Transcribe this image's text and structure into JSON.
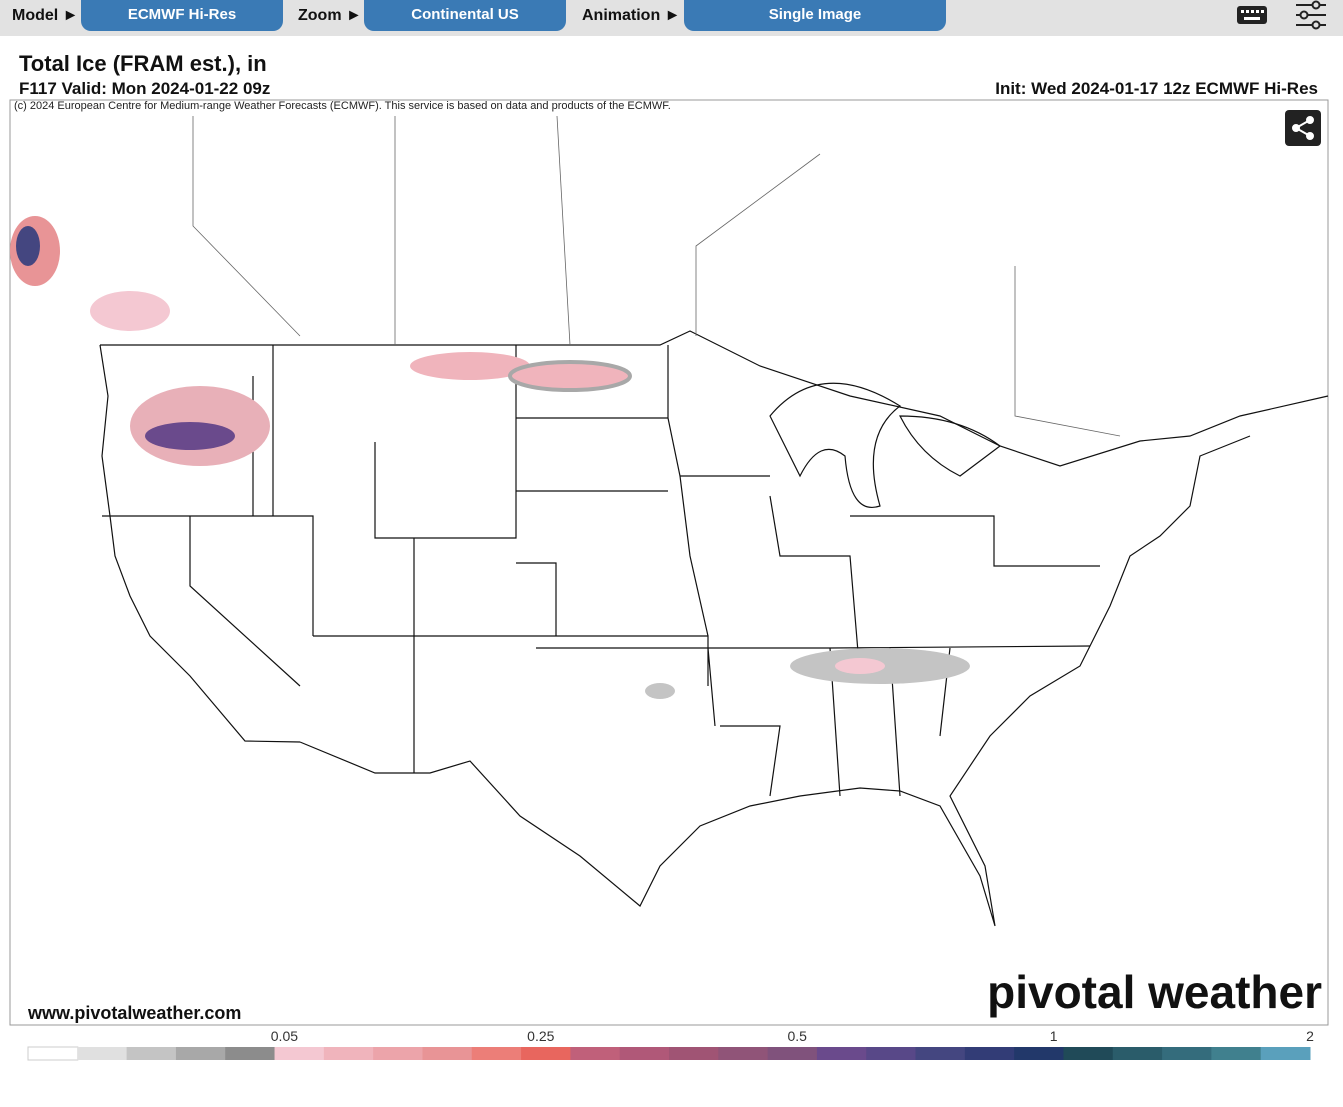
{
  "toolbar": {
    "model_label": "Model ►",
    "model_value": "ECMWF Hi-Res",
    "zoom_label": "Zoom ►",
    "zoom_value": "Continental US",
    "animation_label": "Animation ►",
    "animation_value": "Single Image"
  },
  "header": {
    "title": "Total Ice (FRAM est.), in",
    "valid": "F117 Valid: Mon 2024-01-22 09z",
    "init": "Init: Wed 2024-01-17 12z ECMWF Hi-Res"
  },
  "map": {
    "copyright": "(c) 2024 European Centre for Medium-range Weather Forecasts (ECMWF). This service is based on data and products of the ECMWF.",
    "website": "www.pivotalweather.com",
    "watermark": "pivotal weather"
  },
  "legend": {
    "colors": [
      "#ffffff",
      "#e0e0e0",
      "#c4c4c4",
      "#a8a8a8",
      "#8c8c8c",
      "#f4c8d2",
      "#f0b4bc",
      "#eca4aa",
      "#e89496",
      "#ec7e78",
      "#e8665e",
      "#c0607a",
      "#b05878",
      "#a05474",
      "#905478",
      "#80527c",
      "#6a4a8c",
      "#584888",
      "#444680",
      "#323c76",
      "#22386a",
      "#204a58",
      "#2a5c6a",
      "#346c7c",
      "#40808e",
      "#5aa0bc"
    ],
    "ticks": [
      0.05,
      0.25,
      0.5,
      1,
      2
    ]
  }
}
